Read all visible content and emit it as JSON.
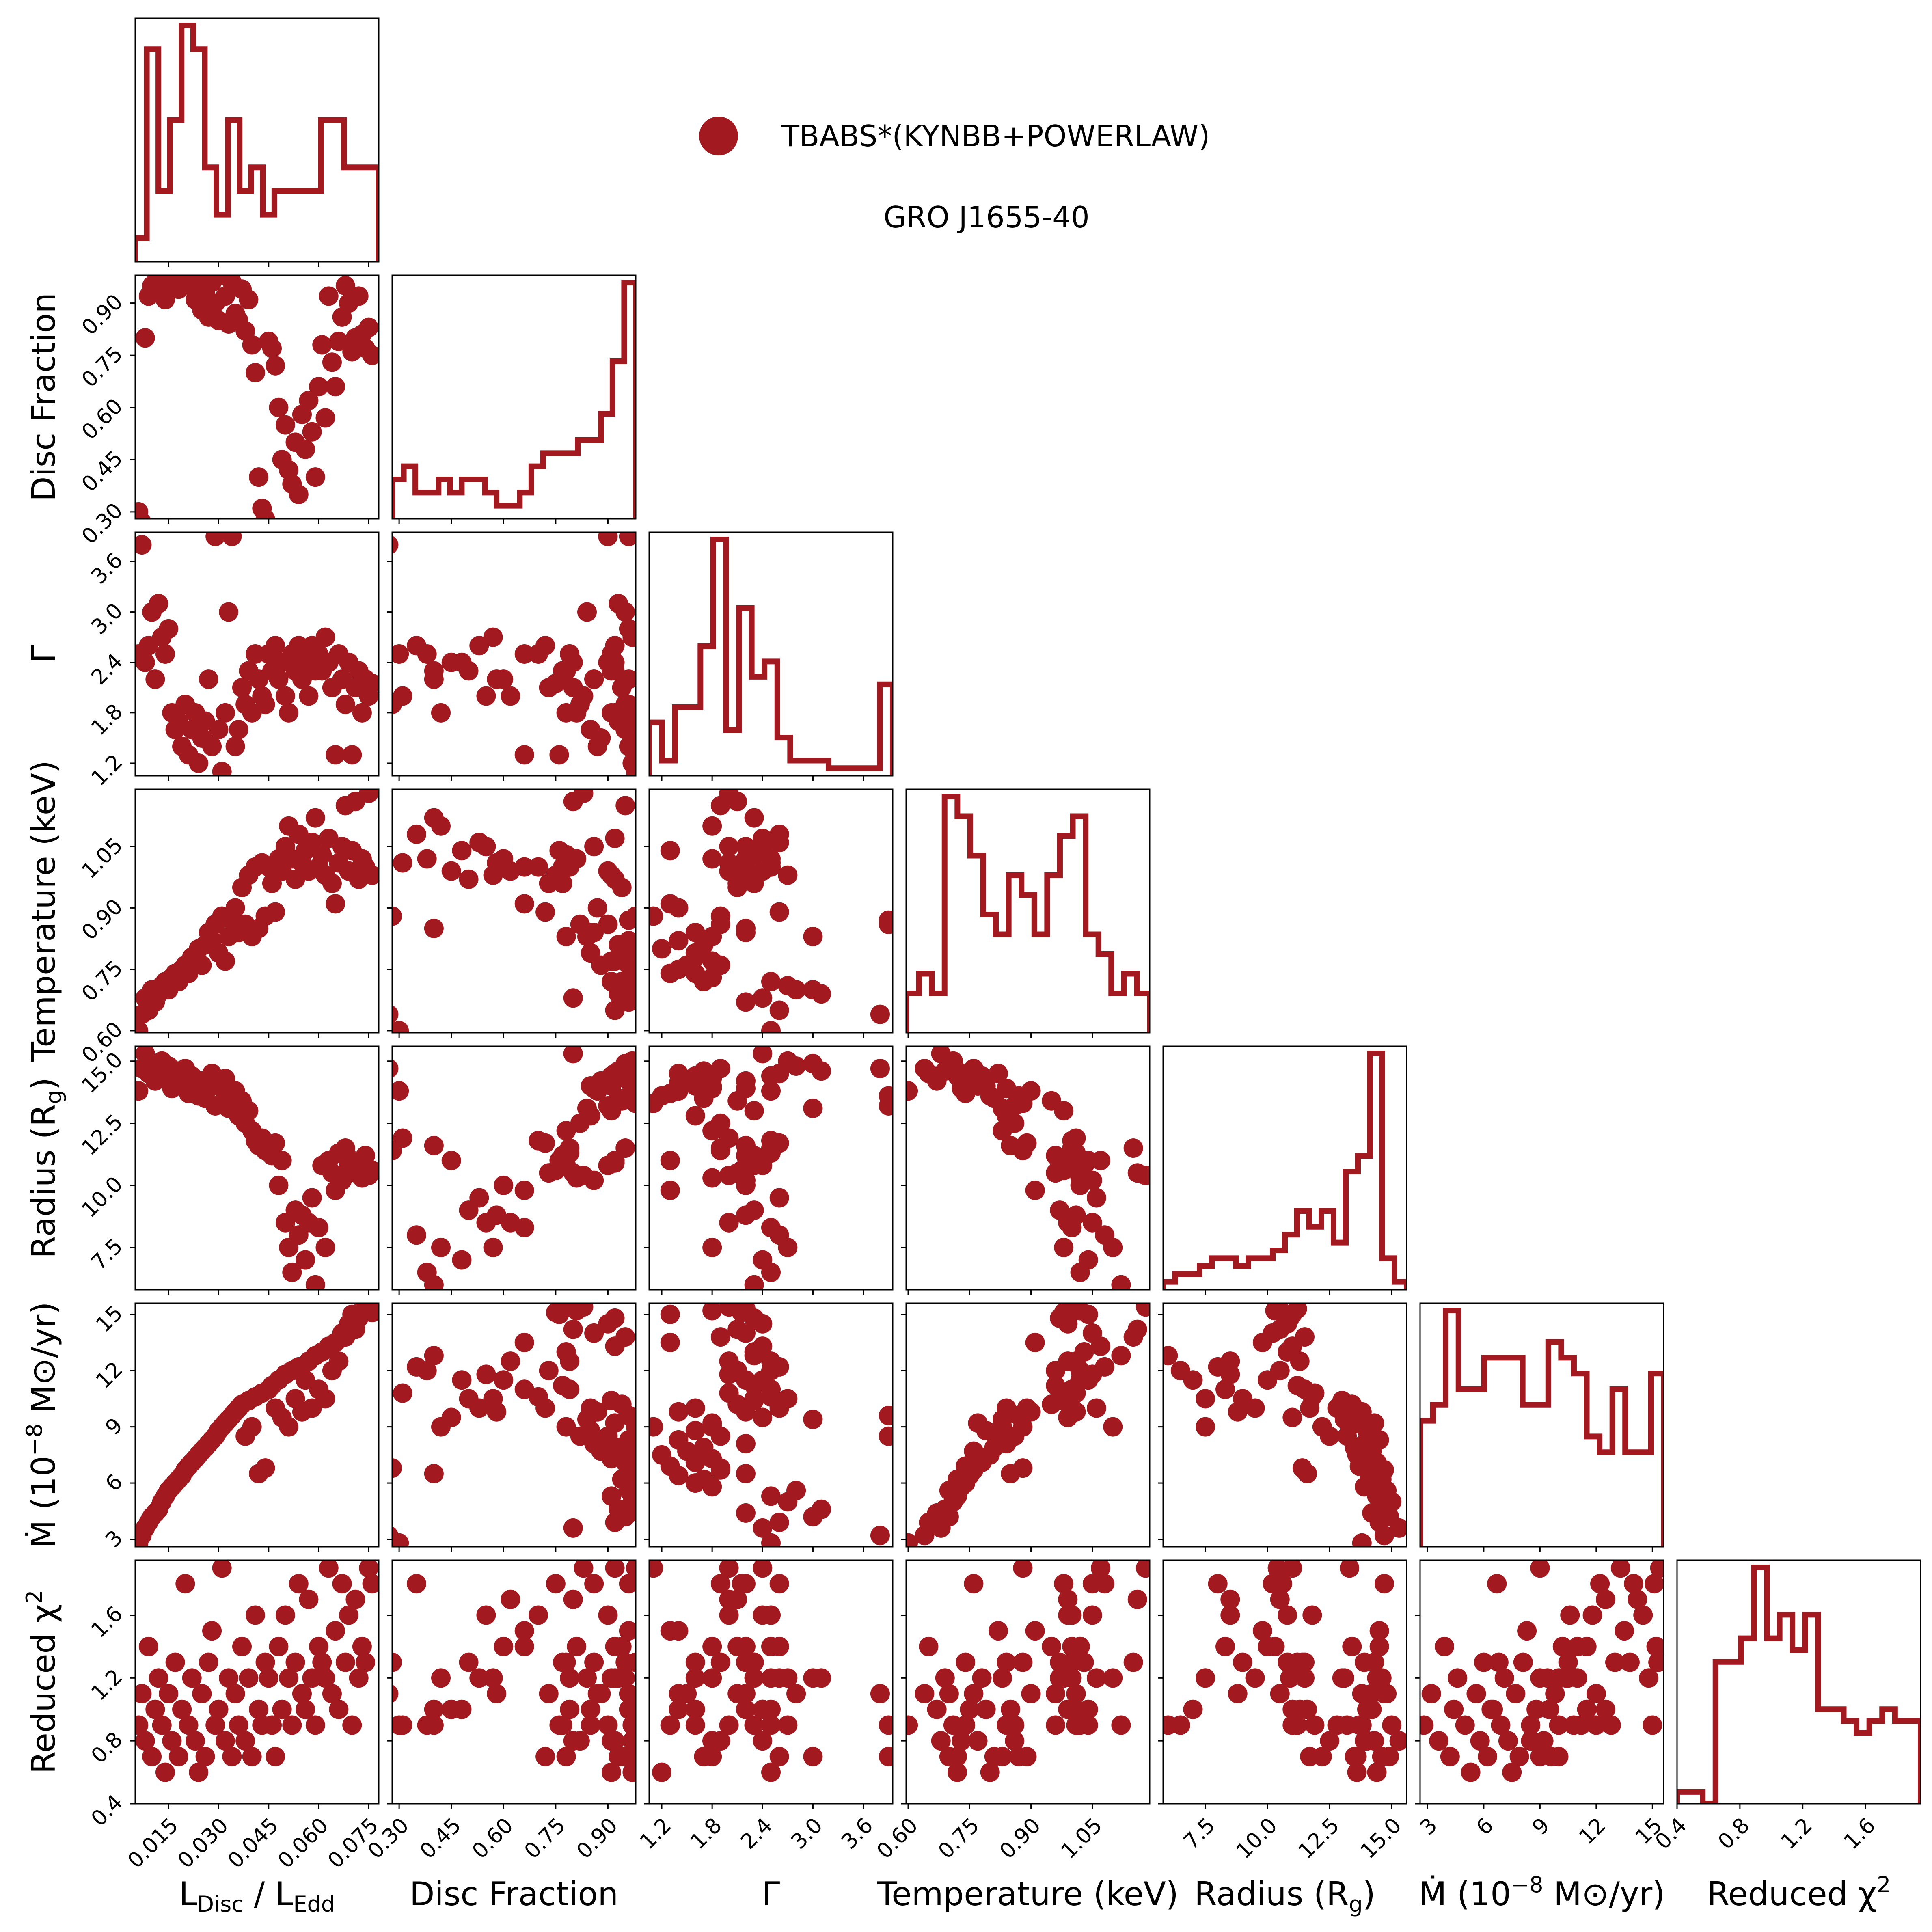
{
  "colors": {
    "series": "#a31920",
    "frame": "#000000",
    "background": "#ffffff"
  },
  "legend": {
    "marker": "filled-circle",
    "label": "TBABS*(KYNBB+POWERLAW)",
    "subtitle": "GRO J1655-40",
    "placement": "top-right"
  },
  "chart_data": {
    "type": "scatter",
    "layout": "corner-plot",
    "variables": [
      {
        "key": "ldisc",
        "label_main": "L",
        "label_sub": "Disc",
        "label_mid": " / L",
        "label_sub2": "Edd",
        "range": [
          0.005,
          0.078
        ],
        "ticks": [
          0.015,
          0.03,
          0.045,
          0.06,
          0.075
        ],
        "tick_labels": [
          "0.015",
          "0.030",
          "0.045",
          "0.060",
          "0.075"
        ]
      },
      {
        "key": "disc_fraction",
        "label": "Disc Fraction",
        "range": [
          0.28,
          0.98
        ],
        "ticks": [
          0.3,
          0.45,
          0.6,
          0.75,
          0.9
        ],
        "tick_labels": [
          "0.30",
          "0.45",
          "0.60",
          "0.75",
          "0.90"
        ]
      },
      {
        "key": "gamma",
        "label": "Γ",
        "range": [
          1.05,
          3.95
        ],
        "ticks": [
          1.2,
          1.8,
          2.4,
          3.0,
          3.6
        ],
        "tick_labels": [
          "1.2",
          "1.8",
          "2.4",
          "3.0",
          "3.6"
        ]
      },
      {
        "key": "temperature",
        "label": "Temperature (keV)",
        "range": [
          0.595,
          1.19
        ],
        "ticks": [
          0.6,
          0.75,
          0.9,
          1.05
        ],
        "tick_labels": [
          "0.60",
          "0.75",
          "0.90",
          "1.05"
        ]
      },
      {
        "key": "radius",
        "label_main": "Radius (R",
        "label_sub": "g",
        "label_mid": ")",
        "range": [
          5.8,
          15.6
        ],
        "ticks": [
          7.5,
          10.0,
          12.5,
          15.0
        ],
        "tick_labels": [
          "7.5",
          "10.0",
          "12.5",
          "15.0"
        ]
      },
      {
        "key": "mdot",
        "label_main": "Ṁ (10",
        "label_sup": "−8",
        "label_mid": " M⊙/yr)",
        "range": [
          2.6,
          15.6
        ],
        "ticks": [
          3,
          6,
          9,
          12,
          15
        ],
        "tick_labels": [
          "3",
          "6",
          "9",
          "12",
          "15"
        ]
      },
      {
        "key": "chi2",
        "label_main": "Reduced χ",
        "label_sup": "2",
        "range": [
          0.4,
          1.95
        ],
        "ticks": [
          0.4,
          0.8,
          1.2,
          1.6
        ],
        "tick_labels": [
          "0.4",
          "0.8",
          "1.2",
          "1.6"
        ]
      }
    ],
    "columns": [
      "ldisc",
      "disc_fraction",
      "gamma",
      "temperature",
      "radius",
      "mdot",
      "chi2"
    ],
    "points": [
      [
        0.006,
        0.3,
        2.5,
        0.6,
        13.8,
        2.8,
        0.9
      ],
      [
        0.007,
        0.27,
        3.8,
        0.64,
        14.7,
        3.2,
        1.1
      ],
      [
        0.008,
        0.8,
        2.4,
        0.68,
        15.3,
        3.6,
        0.8
      ],
      [
        0.009,
        0.92,
        2.6,
        0.65,
        14.5,
        3.9,
        1.4
      ],
      [
        0.01,
        0.95,
        3.0,
        0.7,
        14.9,
        4.2,
        0.7
      ],
      [
        0.011,
        0.96,
        2.2,
        0.67,
        14.2,
        4.4,
        1.0
      ],
      [
        0.012,
        0.93,
        3.1,
        0.69,
        14.6,
        4.6,
        1.2
      ],
      [
        0.013,
        0.97,
        2.7,
        0.71,
        15.0,
        5.0,
        0.9
      ],
      [
        0.014,
        0.91,
        2.5,
        0.72,
        14.4,
        5.3,
        0.6
      ],
      [
        0.015,
        0.96,
        2.8,
        0.7,
        14.8,
        5.6,
        1.1
      ],
      [
        0.016,
        0.97,
        1.8,
        0.73,
        13.9,
        5.8,
        0.8
      ],
      [
        0.017,
        0.98,
        1.6,
        0.74,
        14.3,
        6.0,
        1.3
      ],
      [
        0.018,
        0.94,
        1.7,
        0.72,
        14.6,
        6.2,
        0.7
      ],
      [
        0.019,
        0.97,
        1.4,
        0.75,
        14.1,
        6.4,
        1.0
      ],
      [
        0.02,
        0.96,
        1.9,
        0.76,
        14.7,
        6.7,
        1.8
      ],
      [
        0.021,
        0.98,
        1.3,
        0.74,
        13.7,
        6.9,
        0.9
      ],
      [
        0.022,
        0.95,
        1.6,
        0.78,
        14.4,
        7.1,
        1.2
      ],
      [
        0.023,
        0.91,
        1.8,
        0.77,
        14.0,
        7.3,
        0.8
      ],
      [
        0.024,
        0.97,
        1.2,
        0.8,
        13.6,
        7.5,
        0.6
      ],
      [
        0.025,
        0.88,
        1.5,
        0.76,
        14.2,
        7.7,
        1.1
      ],
      [
        0.026,
        0.93,
        1.7,
        0.81,
        13.5,
        7.9,
        0.7
      ],
      [
        0.027,
        0.86,
        2.2,
        0.84,
        13.9,
        8.1,
        1.3
      ],
      [
        0.028,
        0.96,
        1.4,
        0.82,
        14.5,
        8.3,
        1.5
      ],
      [
        0.029,
        0.9,
        3.9,
        0.86,
        13.2,
        8.5,
        0.9
      ],
      [
        0.03,
        0.85,
        1.6,
        0.79,
        14.0,
        8.8,
        1.0
      ],
      [
        0.031,
        0.98,
        1.1,
        0.88,
        13.3,
        9.0,
        1.9
      ],
      [
        0.032,
        0.92,
        1.8,
        0.77,
        14.3,
        9.2,
        0.8
      ],
      [
        0.033,
        0.84,
        3.0,
        0.83,
        13.1,
        9.4,
        1.2
      ],
      [
        0.034,
        0.96,
        3.9,
        0.87,
        13.6,
        9.6,
        0.7
      ],
      [
        0.035,
        0.87,
        1.4,
        0.9,
        13.8,
        9.8,
        1.1
      ],
      [
        0.036,
        0.85,
        1.6,
        0.84,
        12.8,
        10.0,
        0.9
      ],
      [
        0.037,
        0.94,
        2.1,
        0.95,
        13.4,
        10.2,
        1.4
      ],
      [
        0.038,
        0.82,
        1.9,
        0.86,
        12.5,
        8.5,
        0.8
      ],
      [
        0.039,
        0.91,
        2.3,
        0.98,
        13.0,
        10.4,
        1.2
      ],
      [
        0.04,
        0.78,
        1.8,
        0.83,
        12.2,
        9.0,
        0.7
      ],
      [
        0.041,
        0.7,
        2.5,
        1.0,
        11.8,
        10.6,
        1.6
      ],
      [
        0.042,
        0.4,
        2.2,
        0.85,
        11.6,
        6.5,
        1.0
      ],
      [
        0.043,
        0.31,
        2.0,
        1.01,
        11.9,
        10.8,
        0.9
      ],
      [
        0.044,
        0.28,
        1.9,
        0.88,
        11.4,
        6.8,
        1.3
      ],
      [
        0.045,
        0.79,
        2.5,
        1.0,
        11.5,
        11.0,
        1.2
      ],
      [
        0.046,
        0.77,
        2.3,
        0.96,
        11.2,
        11.2,
        0.9
      ],
      [
        0.047,
        0.72,
        2.6,
        0.89,
        11.7,
        10.0,
        0.7
      ],
      [
        0.048,
        0.6,
        2.2,
        1.02,
        10.0,
        11.5,
        1.4
      ],
      [
        0.049,
        0.45,
        2.4,
        0.99,
        11.0,
        9.5,
        1.0
      ],
      [
        0.05,
        0.55,
        2.0,
        1.05,
        8.5,
        11.8,
        1.6
      ],
      [
        0.051,
        0.42,
        1.8,
        1.1,
        7.5,
        9.0,
        1.2
      ],
      [
        0.052,
        0.38,
        2.5,
        1.02,
        6.5,
        12.0,
        0.9
      ],
      [
        0.053,
        0.5,
        2.3,
        0.97,
        9.0,
        10.5,
        1.3
      ],
      [
        0.054,
        0.35,
        2.6,
        1.08,
        8.0,
        12.2,
        1.8
      ],
      [
        0.055,
        0.58,
        2.2,
        1.01,
        8.8,
        9.8,
        1.1
      ],
      [
        0.056,
        0.48,
        2.4,
        1.04,
        7.0,
        11.5,
        1.0
      ],
      [
        0.057,
        0.62,
        2.0,
        0.99,
        8.5,
        12.5,
        1.7
      ],
      [
        0.058,
        0.53,
        2.6,
        1.06,
        9.5,
        10.0,
        1.2
      ],
      [
        0.059,
        0.4,
        2.3,
        1.12,
        6.0,
        12.8,
        0.9
      ],
      [
        0.06,
        0.66,
        2.5,
        1.0,
        8.3,
        11.0,
        1.4
      ],
      [
        0.061,
        0.78,
        2.3,
        1.03,
        10.8,
        13.0,
        1.3
      ],
      [
        0.062,
        0.57,
        2.7,
        0.98,
        7.5,
        10.5,
        1.2
      ],
      [
        0.063,
        0.92,
        2.4,
        1.07,
        11.0,
        13.3,
        1.9
      ],
      [
        0.064,
        0.73,
        2.1,
        0.96,
        10.5,
        12.0,
        1.1
      ],
      [
        0.065,
        0.66,
        1.3,
        0.91,
        9.8,
        13.5,
        1.5
      ],
      [
        0.066,
        0.79,
        2.5,
        1.01,
        11.3,
        12.5,
        1.0
      ],
      [
        0.067,
        0.86,
        2.2,
        1.05,
        10.2,
        14.0,
        1.8
      ],
      [
        0.068,
        0.95,
        1.9,
        1.15,
        11.5,
        13.8,
        1.3
      ],
      [
        0.069,
        0.9,
        2.4,
        0.99,
        10.8,
        14.5,
        1.6
      ],
      [
        0.07,
        0.76,
        1.3,
        1.04,
        11.0,
        15.0,
        0.9
      ],
      [
        0.071,
        0.8,
        2.1,
        1.16,
        10.5,
        14.2,
        1.7
      ],
      [
        0.072,
        0.92,
        2.3,
        0.97,
        10.9,
        14.8,
        1.2
      ],
      [
        0.073,
        0.81,
        1.8,
        1.02,
        10.3,
        15.2,
        1.4
      ],
      [
        0.074,
        0.77,
        2.2,
        1.0,
        11.2,
        15.3,
        1.3
      ],
      [
        0.075,
        0.83,
        2.0,
        1.18,
        10.4,
        15.4,
        1.9
      ],
      [
        0.076,
        0.75,
        2.15,
        0.98,
        10.6,
        15.1,
        1.8
      ]
    ],
    "histograms": [
      {
        "key": "ldisc",
        "counts": [
          1,
          9,
          3,
          6,
          10,
          9,
          4,
          2,
          6,
          3,
          4,
          2,
          3,
          3,
          3,
          3,
          6,
          6,
          4,
          4,
          4
        ]
      },
      {
        "key": "disc_fraction",
        "counts": [
          3,
          4,
          2,
          2,
          3,
          2,
          3,
          3,
          2,
          1,
          1,
          2,
          4,
          5,
          5,
          5,
          6,
          6,
          8,
          12,
          18
        ]
      },
      {
        "key": "gamma",
        "counts": [
          7,
          2,
          9,
          9,
          17,
          31,
          6,
          22,
          13,
          15,
          5,
          2,
          2,
          2,
          1,
          1,
          1,
          1,
          12
        ]
      },
      {
        "key": "temperature",
        "counts": [
          2,
          3,
          2,
          12,
          11,
          9,
          6,
          5,
          8,
          7,
          5,
          8,
          10,
          11,
          5,
          4,
          2,
          3,
          2
        ]
      },
      {
        "key": "radius",
        "counts": [
          1,
          2,
          2,
          3,
          4,
          4,
          3,
          4,
          4,
          5,
          7,
          10,
          8,
          10,
          6,
          15,
          17,
          30,
          4,
          1
        ]
      },
      {
        "key": "mdot",
        "counts": [
          8,
          9,
          15,
          10,
          10,
          12,
          12,
          12,
          9,
          9,
          13,
          12,
          11,
          7,
          6,
          10,
          6,
          6,
          11
        ]
      },
      {
        "key": "chi2",
        "counts": [
          1,
          1,
          0,
          12,
          12,
          14,
          20,
          14,
          16,
          13,
          16,
          8,
          8,
          7,
          6,
          7,
          8,
          7,
          7
        ]
      }
    ]
  }
}
